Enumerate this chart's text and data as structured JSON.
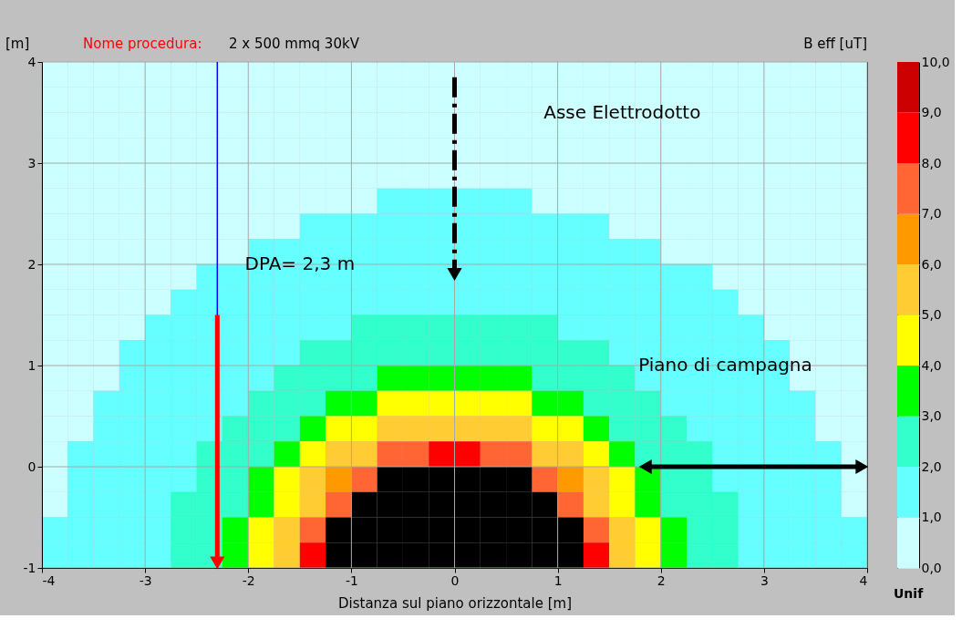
{
  "chart_data": {
    "type": "heatmap",
    "title": "Nome procedura:",
    "subtitle": "2 x 500 mmq 30kV",
    "xlabel": "Distanza sul piano orizzontale [m]",
    "ylabel": "[m]",
    "clabel": "B eff [uT]",
    "x": [
      -3.875,
      -3.625,
      -3.375,
      -3.125,
      -2.875,
      -2.625,
      -2.375,
      -2.125,
      -1.875,
      -1.625,
      -1.375,
      -1.125,
      -0.875,
      -0.625,
      -0.375,
      -0.125,
      0.125,
      0.375,
      0.625,
      0.875,
      1.125,
      1.375,
      1.625,
      1.875,
      2.125,
      2.375,
      2.625,
      2.875,
      3.125,
      3.375,
      3.625,
      3.875
    ],
    "y": [
      3.875,
      3.625,
      3.375,
      3.125,
      2.875,
      2.625,
      2.375,
      2.125,
      1.875,
      1.625,
      1.375,
      1.125,
      0.875,
      0.625,
      0.375,
      0.125,
      -0.125,
      -0.375,
      -0.625,
      -0.875
    ],
    "cells": [
      [
        0.5,
        0.5,
        0.5,
        0.5,
        0.5,
        0.5,
        0.5,
        0.5,
        0.5,
        0.5,
        0.5,
        0.5,
        0.5,
        0.5,
        0.5,
        0.5,
        0.5,
        0.5,
        0.5,
        0.5,
        0.5,
        0.5,
        0.5,
        0.5,
        0.5,
        0.5,
        0.5,
        0.5,
        0.5,
        0.5,
        0.5,
        0.5
      ],
      [
        0.5,
        0.5,
        0.5,
        0.5,
        0.5,
        0.5,
        0.5,
        0.5,
        0.5,
        0.5,
        0.5,
        0.5,
        0.5,
        0.5,
        0.5,
        0.5,
        0.5,
        0.5,
        0.5,
        0.5,
        0.5,
        0.5,
        0.5,
        0.5,
        0.5,
        0.5,
        0.5,
        0.5,
        0.5,
        0.5,
        0.5,
        0.5
      ],
      [
        0.5,
        0.5,
        0.5,
        0.5,
        0.5,
        0.5,
        0.5,
        0.5,
        0.5,
        0.5,
        0.5,
        0.5,
        0.5,
        0.5,
        0.5,
        0.5,
        0.5,
        0.5,
        0.5,
        0.5,
        0.5,
        0.5,
        0.5,
        0.5,
        0.5,
        0.5,
        0.5,
        0.5,
        0.5,
        0.5,
        0.5,
        0.5
      ],
      [
        0.5,
        0.5,
        0.5,
        0.5,
        0.5,
        0.5,
        0.5,
        0.5,
        0.5,
        0.5,
        0.5,
        0.5,
        0.5,
        0.5,
        0.5,
        0.5,
        0.5,
        0.5,
        0.5,
        0.5,
        0.5,
        0.5,
        0.5,
        0.5,
        0.5,
        0.5,
        0.5,
        0.5,
        0.5,
        0.5,
        0.5,
        0.5
      ],
      [
        0.5,
        0.5,
        0.5,
        0.5,
        0.5,
        0.5,
        0.5,
        0.5,
        0.5,
        0.5,
        0.5,
        0.5,
        0.5,
        0.5,
        0.5,
        0.5,
        0.5,
        0.5,
        0.5,
        0.5,
        0.5,
        0.5,
        0.5,
        0.5,
        0.5,
        0.5,
        0.5,
        0.5,
        0.5,
        0.5,
        0.5,
        0.5
      ],
      [
        0.5,
        0.5,
        0.5,
        0.5,
        0.5,
        0.5,
        0.5,
        0.5,
        0.5,
        0.5,
        0.5,
        0.5,
        0.5,
        1.5,
        1.5,
        1.5,
        1.5,
        1.5,
        1.5,
        0.5,
        0.5,
        0.5,
        0.5,
        0.5,
        0.5,
        0.5,
        0.5,
        0.5,
        0.5,
        0.5,
        0.5,
        0.5
      ],
      [
        0.5,
        0.5,
        0.5,
        0.5,
        0.5,
        0.5,
        0.5,
        0.5,
        0.5,
        0.5,
        1.5,
        1.5,
        1.5,
        1.5,
        1.5,
        1.5,
        1.5,
        1.5,
        1.5,
        1.5,
        1.5,
        1.5,
        0.5,
        0.5,
        0.5,
        0.5,
        0.5,
        0.5,
        0.5,
        0.5,
        0.5,
        0.5
      ],
      [
        0.5,
        0.5,
        0.5,
        0.5,
        0.5,
        0.5,
        0.5,
        0.5,
        1.5,
        1.5,
        1.5,
        1.5,
        1.5,
        1.5,
        1.5,
        1.5,
        1.5,
        1.5,
        1.5,
        1.5,
        1.5,
        1.5,
        1.5,
        1.5,
        0.5,
        0.5,
        0.5,
        0.5,
        0.5,
        0.5,
        0.5,
        0.5
      ],
      [
        0.5,
        0.5,
        0.5,
        0.5,
        0.5,
        0.5,
        1.5,
        1.5,
        1.5,
        1.5,
        1.5,
        1.5,
        1.5,
        1.5,
        1.5,
        1.5,
        1.5,
        1.5,
        1.5,
        1.5,
        1.5,
        1.5,
        1.5,
        1.5,
        1.5,
        1.5,
        0.5,
        0.5,
        0.5,
        0.5,
        0.5,
        0.5
      ],
      [
        0.5,
        0.5,
        0.5,
        0.5,
        0.5,
        1.5,
        1.5,
        1.5,
        1.5,
        1.5,
        1.5,
        1.5,
        1.5,
        1.5,
        1.5,
        1.5,
        1.5,
        1.5,
        1.5,
        1.5,
        1.5,
        1.5,
        1.5,
        1.5,
        1.5,
        1.5,
        1.5,
        0.5,
        0.5,
        0.5,
        0.5,
        0.5
      ],
      [
        0.5,
        0.5,
        0.5,
        0.5,
        1.5,
        1.5,
        1.5,
        1.5,
        1.5,
        1.5,
        1.5,
        1.5,
        2.5,
        2.5,
        2.5,
        2.5,
        2.5,
        2.5,
        2.5,
        2.5,
        1.5,
        1.5,
        1.5,
        1.5,
        1.5,
        1.5,
        1.5,
        1.5,
        0.5,
        0.5,
        0.5,
        0.5
      ],
      [
        0.5,
        0.5,
        0.5,
        1.5,
        1.5,
        1.5,
        1.5,
        1.5,
        1.5,
        1.5,
        2.5,
        2.5,
        2.5,
        2.5,
        2.5,
        2.5,
        2.5,
        2.5,
        2.5,
        2.5,
        2.5,
        2.5,
        1.5,
        1.5,
        1.5,
        1.5,
        1.5,
        1.5,
        1.5,
        0.5,
        0.5,
        0.5
      ],
      [
        0.5,
        0.5,
        0.5,
        1.5,
        1.5,
        1.5,
        1.5,
        1.5,
        1.5,
        2.5,
        2.5,
        2.5,
        2.5,
        3.5,
        3.5,
        3.5,
        3.5,
        3.5,
        3.5,
        2.5,
        2.5,
        2.5,
        2.5,
        1.5,
        1.5,
        1.5,
        1.5,
        1.5,
        1.5,
        0.5,
        0.5,
        0.5
      ],
      [
        0.5,
        0.5,
        1.5,
        1.5,
        1.5,
        1.5,
        1.5,
        1.5,
        2.5,
        2.5,
        2.5,
        3.5,
        3.5,
        4.5,
        4.5,
        4.5,
        4.5,
        4.5,
        4.5,
        3.5,
        3.5,
        2.5,
        2.5,
        2.5,
        1.5,
        1.5,
        1.5,
        1.5,
        1.5,
        1.5,
        0.5,
        0.5
      ],
      [
        0.5,
        0.5,
        1.5,
        1.5,
        1.5,
        1.5,
        1.5,
        2.5,
        2.5,
        2.5,
        3.5,
        4.5,
        4.5,
        5.5,
        5.5,
        5.5,
        5.5,
        5.5,
        5.5,
        4.5,
        4.5,
        3.5,
        2.5,
        2.5,
        2.5,
        1.5,
        1.5,
        1.5,
        1.5,
        1.5,
        0.5,
        0.5
      ],
      [
        0.5,
        1.5,
        1.5,
        1.5,
        1.5,
        1.5,
        2.5,
        2.5,
        2.5,
        3.5,
        4.5,
        5.5,
        5.5,
        7.5,
        7.5,
        8.5,
        8.5,
        7.5,
        7.5,
        5.5,
        5.5,
        4.5,
        3.5,
        2.5,
        2.5,
        2.5,
        1.5,
        1.5,
        1.5,
        1.5,
        1.5,
        0.5
      ],
      [
        0.5,
        1.5,
        1.5,
        1.5,
        1.5,
        1.5,
        2.5,
        2.5,
        3.5,
        4.5,
        5.5,
        6.5,
        7.5,
        null,
        null,
        null,
        null,
        null,
        null,
        7.5,
        6.5,
        5.5,
        4.5,
        3.5,
        2.5,
        2.5,
        1.5,
        1.5,
        1.5,
        1.5,
        1.5,
        0.5
      ],
      [
        0.5,
        1.5,
        1.5,
        1.5,
        1.5,
        2.5,
        2.5,
        2.5,
        3.5,
        4.5,
        5.5,
        7.5,
        null,
        null,
        null,
        null,
        null,
        null,
        null,
        null,
        7.5,
        5.5,
        4.5,
        3.5,
        2.5,
        2.5,
        2.5,
        1.5,
        1.5,
        1.5,
        1.5,
        0.5
      ],
      [
        1.5,
        1.5,
        1.5,
        1.5,
        1.5,
        2.5,
        2.5,
        3.5,
        4.5,
        5.5,
        7.5,
        null,
        null,
        null,
        null,
        null,
        null,
        null,
        null,
        null,
        null,
        7.5,
        5.5,
        4.5,
        3.5,
        2.5,
        2.5,
        1.5,
        1.5,
        1.5,
        1.5,
        1.5
      ],
      [
        1.5,
        1.5,
        1.5,
        1.5,
        1.5,
        2.5,
        2.5,
        3.5,
        4.5,
        5.5,
        8.5,
        null,
        null,
        null,
        null,
        null,
        null,
        null,
        null,
        null,
        null,
        8.5,
        5.5,
        4.5,
        3.5,
        2.5,
        2.5,
        1.5,
        1.5,
        1.5,
        1.5,
        1.5
      ]
    ],
    "colors": [
      "#ccffff",
      "#66ffff",
      "#33ffcc",
      "#00ff00",
      "#ffff00",
      "#ffcc33",
      "#ff9900",
      "#ff6633",
      "#ff0000",
      "#cc0000",
      "#000000"
    ],
    "clim": [
      0,
      10
    ],
    "cticks": [
      {
        "value": 0,
        "label": "0,0"
      },
      {
        "value": 1,
        "label": "1,0"
      },
      {
        "value": 2,
        "label": "2,0"
      },
      {
        "value": 3,
        "label": "3,0"
      },
      {
        "value": 4,
        "label": "4,0"
      },
      {
        "value": 5,
        "label": "5,0"
      },
      {
        "value": 6,
        "label": "6,0"
      },
      {
        "value": 7,
        "label": "7,0"
      },
      {
        "value": 8,
        "label": "8,0"
      },
      {
        "value": 9,
        "label": "9,0"
      },
      {
        "value": 10,
        "label": "10,0"
      }
    ],
    "xlim": [
      -4,
      4
    ],
    "xticks": [
      -4,
      -3,
      -2,
      -1,
      0,
      1,
      2,
      3,
      4
    ],
    "ylim": [
      -1,
      4
    ],
    "yticks": [
      -1,
      0,
      1,
      2,
      3,
      4
    ],
    "grid": true,
    "ref_lines": [
      {
        "axis": "x",
        "value": -2.3,
        "color": "#0000ff"
      }
    ],
    "series": [
      {
        "type": "line",
        "x": [
          -2.3,
          -2.3
        ],
        "values": [
          1.5,
          -0.95
        ],
        "color": "#ff0000",
        "line_style": "solid"
      },
      {
        "type": "line",
        "x": [
          0,
          0
        ],
        "values": [
          3.85,
          1.9
        ],
        "color": "#000000",
        "line_style": "dashed"
      },
      {
        "type": "line",
        "x": [
          1.85,
          3.95
        ],
        "values": [
          0,
          0
        ],
        "color": "#000000",
        "line_style": "solid",
        "marker": "triangle"
      }
    ],
    "annotations": [
      "Asse Elettrodotto",
      "DPA= 2,3 m",
      "Piano di campagna",
      "Unif"
    ]
  }
}
